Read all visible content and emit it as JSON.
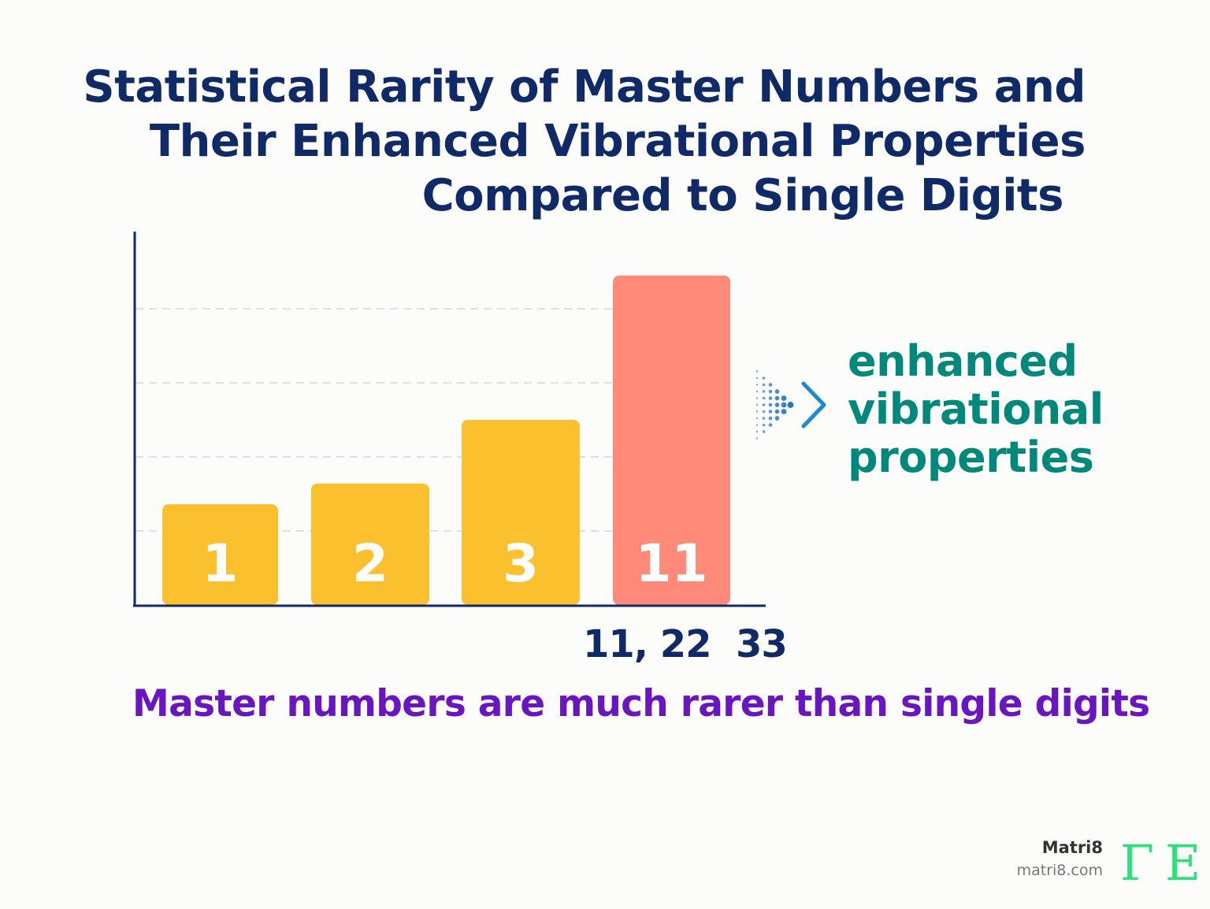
{
  "chart_data": {
    "type": "bar",
    "title": "Statistical Rarity of Master Numbers and Their Enhanced Vibrational Properties Compared to Single Digits",
    "title_lines": [
      "Statistical Rarity of Master Numbers and",
      "Their Enhanced Vibrational Properties",
      "Compared to Single Digits"
    ],
    "categories": [
      "1",
      "2",
      "3",
      "11"
    ],
    "values": [
      1.36,
      1.64,
      2.5,
      4.45
    ],
    "ylim": [
      0,
      5
    ],
    "grid": true,
    "colors": [
      "#fbc02d",
      "#fbc02d",
      "#fbc02d",
      "#ff8a7a"
    ],
    "x_annotation": "11, 22  33",
    "side_annotation": [
      "enhanced",
      "vibrational",
      "properties"
    ],
    "caption": "Master numbers are much rarer than single digits"
  },
  "branding": {
    "name": "Matri8",
    "url": "matri8.com",
    "logo_text": "Matri8"
  },
  "colors": {
    "title": "#0f2a66",
    "annotation": "#00897b",
    "caption": "#6a16c0",
    "axis": "#0f2a66"
  }
}
